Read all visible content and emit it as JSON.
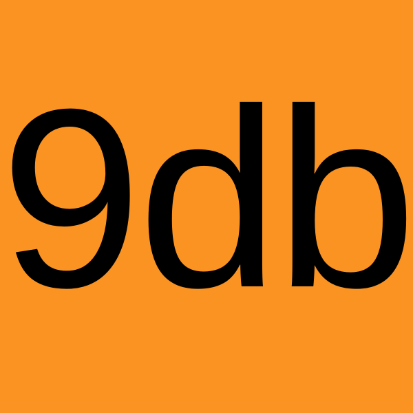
{
  "logo": {
    "text": "9db"
  },
  "colors": {
    "background": "#fa9322",
    "text": "#000000"
  }
}
